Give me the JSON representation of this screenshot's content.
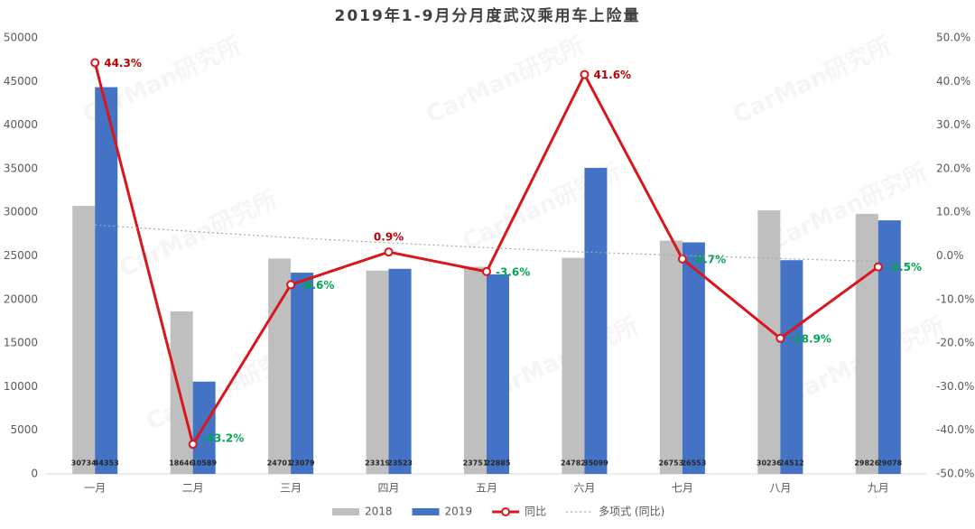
{
  "chart_data": {
    "type": "bar",
    "title": "2019年1-9月分月度武汉乘用车上险量",
    "watermark": "CarMan研究所",
    "categories": [
      "一月",
      "二月",
      "三月",
      "四月",
      "五月",
      "六月",
      "七月",
      "八月",
      "九月"
    ],
    "series": [
      {
        "name": "2018",
        "type": "bar",
        "color": "#bfbfbf",
        "values": [
          30734,
          18646,
          24701,
          23319,
          23751,
          24782,
          26753,
          30236,
          29826
        ]
      },
      {
        "name": "2019",
        "type": "bar",
        "color": "#4472c4",
        "values": [
          44353,
          10589,
          23079,
          23523,
          22885,
          35099,
          26553,
          24512,
          29078
        ]
      },
      {
        "name": "同比",
        "type": "line",
        "axis": "y2",
        "color": "#d9161c",
        "values": [
          44.3,
          -43.2,
          -6.6,
          0.9,
          -3.6,
          41.6,
          -0.7,
          -18.9,
          -2.5
        ],
        "value_labels": [
          "44.3%",
          "-43.2%",
          "-6.6%",
          "0.9%",
          "-3.6%",
          "41.6%",
          "-0.7%",
          "-18.9%",
          "-2.5%"
        ],
        "label_colors": {
          "positive": "#c00000",
          "negative": "#00a651"
        }
      },
      {
        "name": "多项式 (同比)",
        "type": "line",
        "axis": "y2",
        "color": "#a6a6a6",
        "dotted": true,
        "values": [
          7.1,
          5.6,
          4.2,
          3.0,
          1.9,
          0.9,
          0.1,
          -0.6,
          -1.3
        ]
      }
    ],
    "ylim": [
      0,
      50000
    ],
    "yticks": [
      0,
      5000,
      10000,
      15000,
      20000,
      25000,
      30000,
      35000,
      40000,
      45000,
      50000
    ],
    "y2lim": [
      -50,
      50
    ],
    "y2ticks": [
      {
        "value": -50,
        "label": "-50.0%"
      },
      {
        "value": -40,
        "label": "-40.0%"
      },
      {
        "value": -30,
        "label": "-30.0%"
      },
      {
        "value": -20,
        "label": "-20.0%"
      },
      {
        "value": -10,
        "label": "-10.0%"
      },
      {
        "value": 0,
        "label": "0.0%"
      },
      {
        "value": 10,
        "label": "10.0%"
      },
      {
        "value": 20,
        "label": "20.0%"
      },
      {
        "value": 30,
        "label": "30.0%"
      },
      {
        "value": 40,
        "label": "40.0%"
      },
      {
        "value": 50,
        "label": "50.0%"
      }
    ],
    "grid": false,
    "legend": "bottom"
  }
}
